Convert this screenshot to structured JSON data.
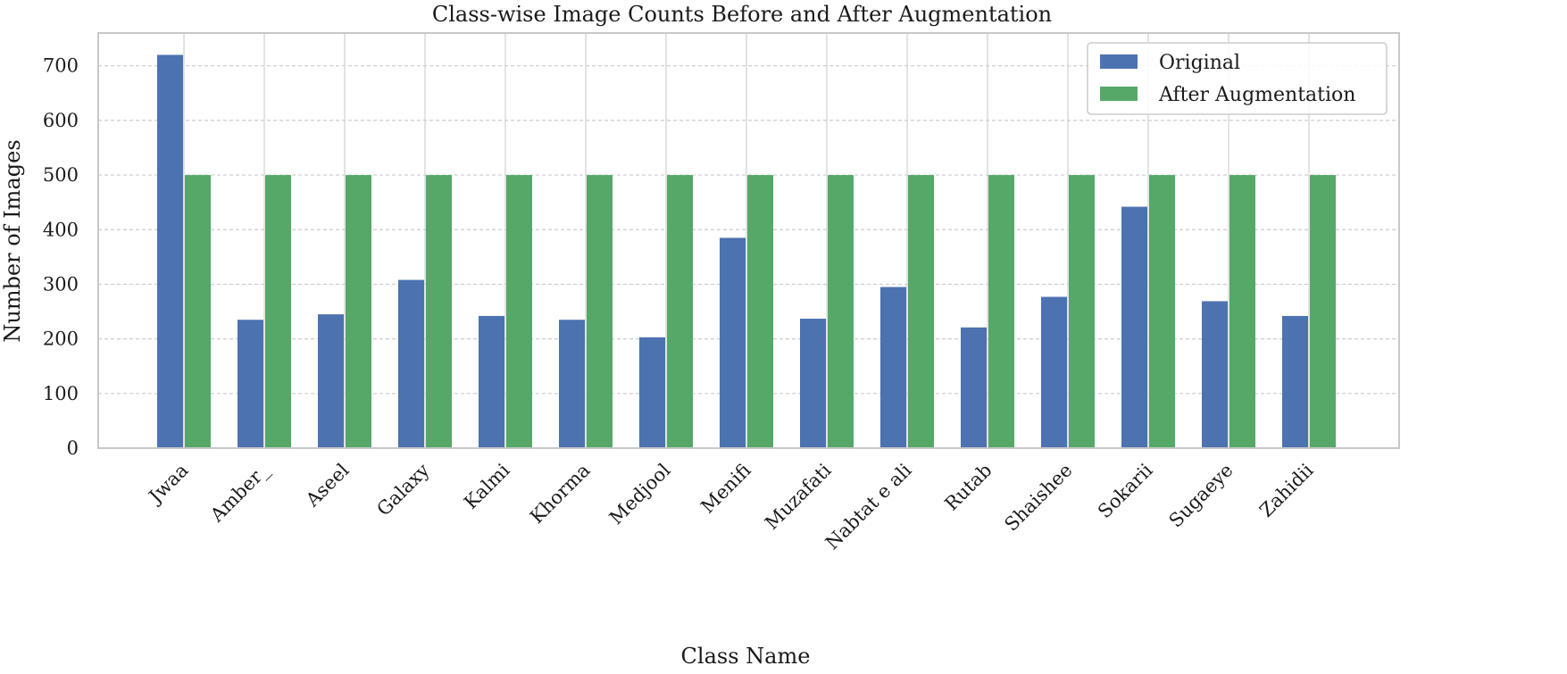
{
  "chart_data": {
    "type": "bar",
    "title": "Class-wise Image Counts Before and After Augmentation",
    "xlabel": "Class Name",
    "ylabel": "Number of Images",
    "ylim": [
      0,
      760
    ],
    "yticks": [
      0,
      100,
      200,
      300,
      400,
      500,
      600,
      700
    ],
    "grid": true,
    "legend_position": "top-right",
    "categories": [
      "Jwaa",
      "Amber_",
      "Aseel",
      "Galaxy",
      "Kalmi",
      "Khorma",
      "Medjool",
      "Menifi",
      "Muzafati",
      "Nabtat e ali",
      "Rutab",
      "Shaishee",
      "Sokarii",
      "Sugaeye",
      "Zahidii"
    ],
    "series": [
      {
        "name": "Original",
        "color": "#4c72b0",
        "values": [
          720,
          235,
          245,
          308,
          242,
          235,
          203,
          385,
          237,
          295,
          221,
          277,
          442,
          269,
          242
        ]
      },
      {
        "name": "After Augmentation",
        "color": "#55a868",
        "values": [
          500,
          500,
          500,
          500,
          500,
          500,
          500,
          500,
          500,
          500,
          500,
          500,
          500,
          500,
          500
        ]
      }
    ]
  }
}
